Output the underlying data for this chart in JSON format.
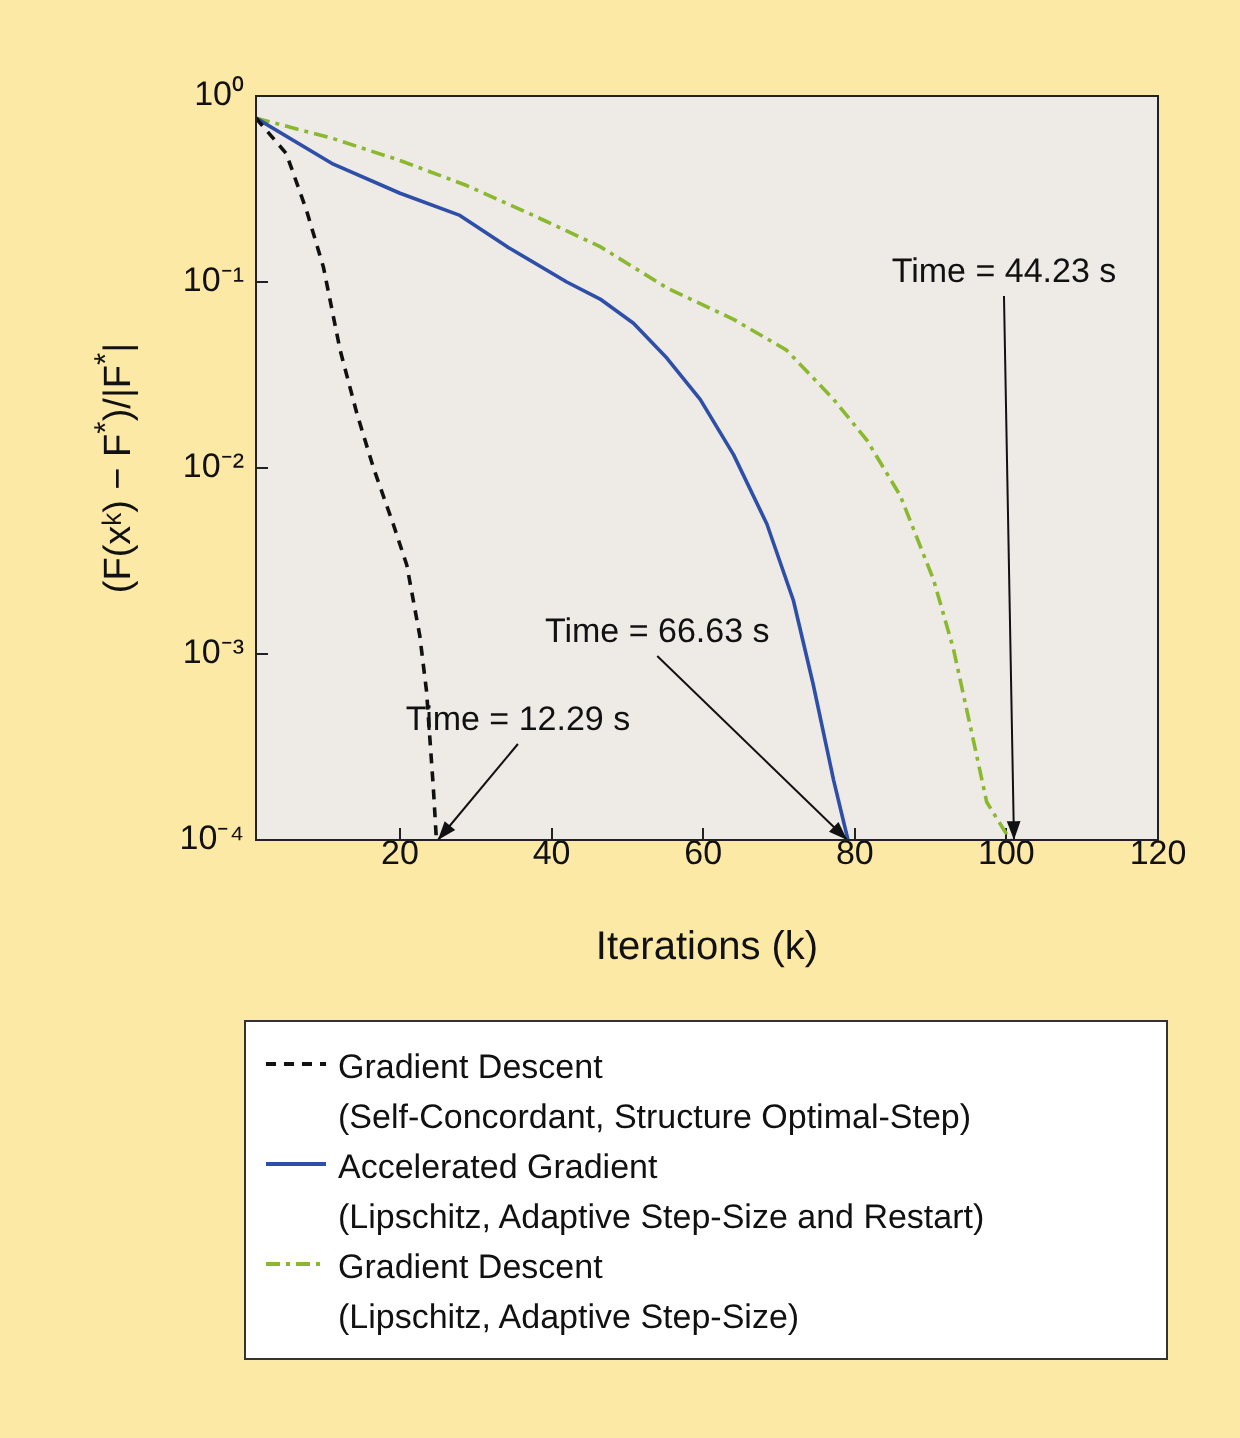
{
  "chart_data": {
    "type": "line",
    "xlabel": "Iterations (k)",
    "ylabel": "(F(xᵏ) − F$^{*}$)/|F$^{*}$|",
    "log": "y",
    "xlim": [
      1,
      120
    ],
    "xticks": [
      20,
      40,
      60,
      80,
      100,
      120
    ],
    "ylim": [
      0.0001,
      1
    ],
    "yticks": [
      {
        "value": 0.0001,
        "label": "10⁻⁴"
      },
      {
        "value": 0.001,
        "label": "10⁻³"
      },
      {
        "value": 0.01,
        "label": "10⁻²"
      },
      {
        "value": 0.1,
        "label": "10⁻¹"
      },
      {
        "value": 1,
        "label": "10⁰"
      }
    ],
    "grid": false,
    "legend": "bottom",
    "marker": "none",
    "series": [
      {
        "name": "Gradient Descent\n(Self-Concordant, Structure Optimal-Step)",
        "color": "#111111",
        "line_style": "dashed",
        "x": [
          1,
          5,
          7.7,
          9.9,
          12.1,
          14.3,
          16.5,
          19.1,
          20.9,
          22.6,
          23.5,
          24.4,
          24.8
        ],
        "values": [
          0.76,
          0.49,
          0.24,
          0.12,
          0.043,
          0.0197,
          0.01,
          0.005,
          0.003,
          0.00126,
          0.00063,
          0.00019,
          0.0001
        ]
      },
      {
        "name": "Accelerated Gradient\n(Lipschitz, Adaptive Step-Size and Restart)",
        "color": "#2e4fa8",
        "line_style": "solid",
        "x": [
          1,
          11.2,
          20,
          27.9,
          34.1,
          42,
          46.4,
          50.8,
          55.2,
          59.6,
          64,
          68.4,
          71.9,
          74.5,
          77.2,
          79.1
        ],
        "values": [
          0.76,
          0.43,
          0.3,
          0.228,
          0.155,
          0.1,
          0.081,
          0.06,
          0.039,
          0.0234,
          0.0118,
          0.005,
          0.00194,
          0.00069,
          0.00021,
          0.0001
        ]
      },
      {
        "name": "Gradient Descent\n(Lipschitz, Adaptive Step-Size)",
        "color": "#8ab82e",
        "line_style": "dotted",
        "x": [
          1,
          11.2,
          20,
          28.8,
          37.6,
          46.4,
          55.2,
          64,
          71,
          77.2,
          81.6,
          86,
          90.4,
          93,
          95.6,
          97.4,
          100.5
        ],
        "values": [
          0.76,
          0.59,
          0.45,
          0.33,
          0.228,
          0.155,
          0.093,
          0.063,
          0.043,
          0.0234,
          0.0141,
          0.0071,
          0.0025,
          0.00107,
          0.00035,
          0.00016,
          0.0001
        ]
      }
    ],
    "annotations": [
      {
        "text": "Time = 12.29 s",
        "x": 25,
        "y": 0.0001
      },
      {
        "text": "Time = 66.63 s",
        "x": 79,
        "y": 0.0001
      },
      {
        "text": "Time = 44.23 s",
        "x": 101,
        "y": 0.0001
      }
    ]
  }
}
